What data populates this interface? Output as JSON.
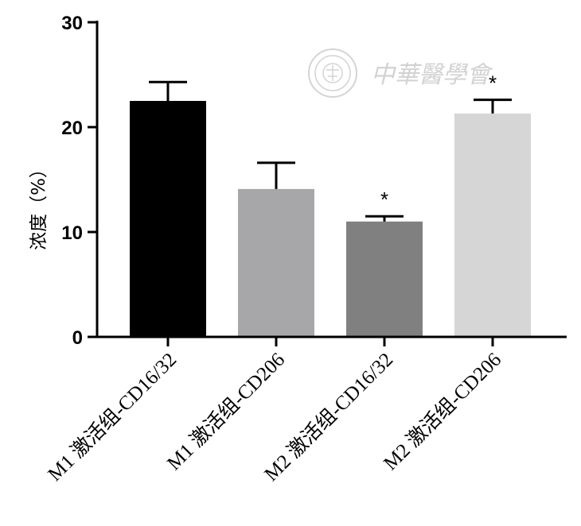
{
  "chart_data": {
    "type": "bar",
    "ylabel": "浓度（%）",
    "xlabel": "",
    "ylim": [
      0,
      30
    ],
    "yticks": [
      0,
      10,
      20,
      30
    ],
    "categories": [
      "M1 激活组-CD16/32",
      "M1 激活组-CD206",
      "M2 激活组-CD16/32",
      "M2 激活组-CD206"
    ],
    "values": [
      22.5,
      14.1,
      11.0,
      21.3
    ],
    "errors": [
      1.8,
      2.5,
      0.5,
      1.3
    ],
    "significance": [
      "",
      "",
      "*",
      "*"
    ],
    "colors": [
      "#000000",
      "#a7a7aa",
      "#808080",
      "#d6d6d6"
    ]
  },
  "watermark": {
    "text": "中華醫學會",
    "icon": "seal-icon"
  }
}
